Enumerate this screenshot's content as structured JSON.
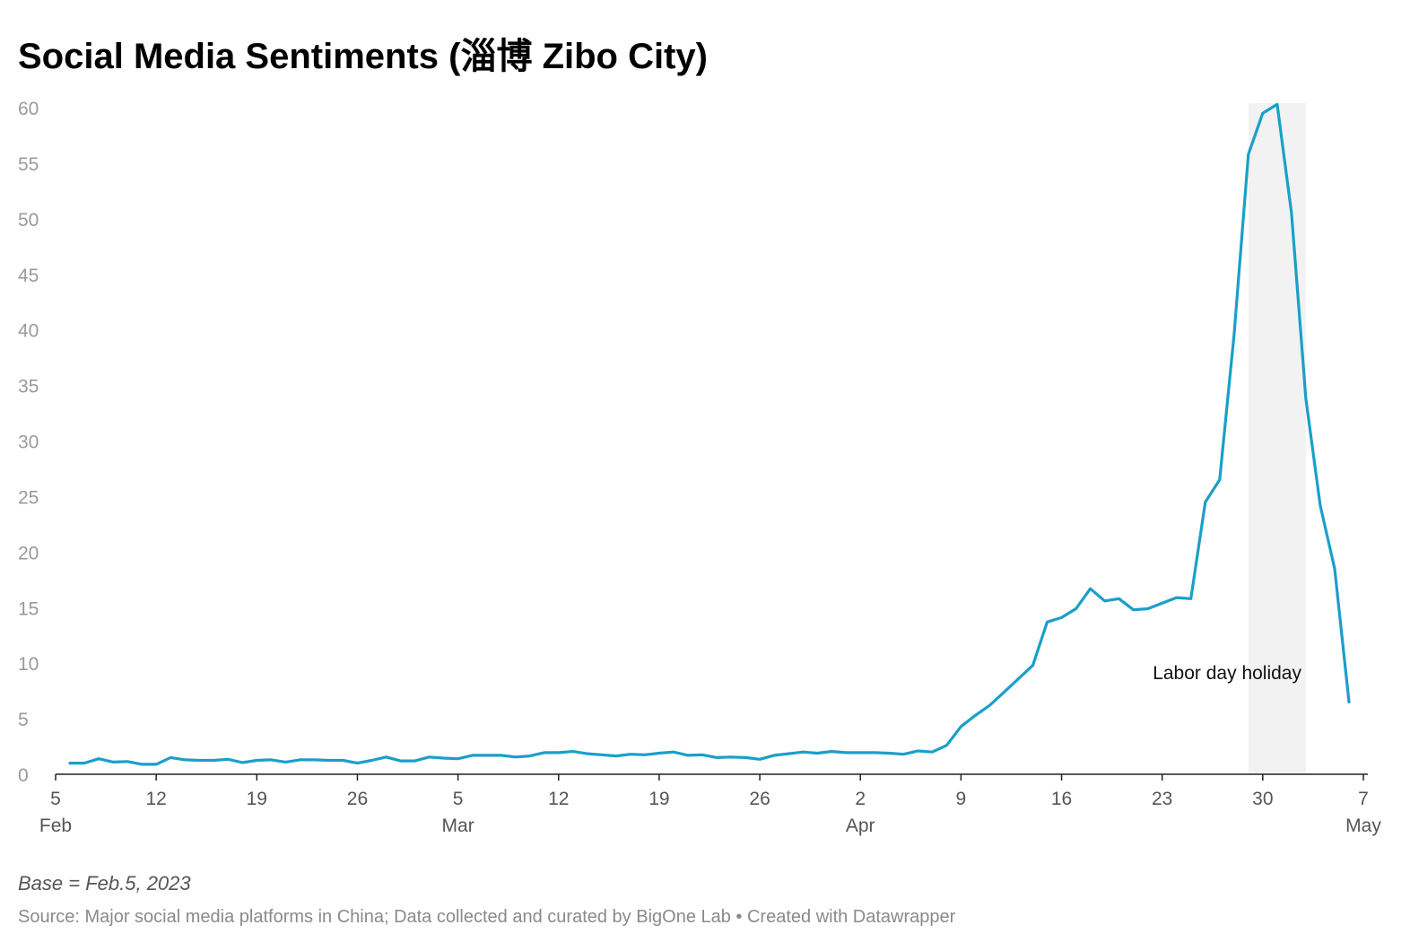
{
  "chart_data": {
    "type": "line",
    "title": "Social Media Sentiments (淄博 Zibo City)",
    "xlabel": "",
    "ylabel": "",
    "ylim": [
      0,
      60
    ],
    "yticks": [
      0,
      5,
      10,
      15,
      20,
      25,
      30,
      35,
      40,
      45,
      50,
      55,
      60
    ],
    "xlim": [
      "2023-02-05",
      "2023-05-07"
    ],
    "xticks": [
      {
        "date": "2023-02-05",
        "day": "5",
        "month": "Feb"
      },
      {
        "date": "2023-02-12",
        "day": "12",
        "month": ""
      },
      {
        "date": "2023-02-19",
        "day": "19",
        "month": ""
      },
      {
        "date": "2023-02-26",
        "day": "26",
        "month": ""
      },
      {
        "date": "2023-03-05",
        "day": "5",
        "month": "Mar"
      },
      {
        "date": "2023-03-12",
        "day": "12",
        "month": ""
      },
      {
        "date": "2023-03-19",
        "day": "19",
        "month": ""
      },
      {
        "date": "2023-03-26",
        "day": "26",
        "month": ""
      },
      {
        "date": "2023-04-02",
        "day": "2",
        "month": "Apr"
      },
      {
        "date": "2023-04-09",
        "day": "9",
        "month": ""
      },
      {
        "date": "2023-04-16",
        "day": "16",
        "month": ""
      },
      {
        "date": "2023-04-23",
        "day": "23",
        "month": ""
      },
      {
        "date": "2023-04-30",
        "day": "30",
        "month": ""
      },
      {
        "date": "2023-05-07",
        "day": "7",
        "month": "May"
      }
    ],
    "grid": false,
    "line_color": "#1a9fc9",
    "highlight": {
      "label": "Labor day holiday",
      "start": "2023-04-29",
      "end": "2023-05-03",
      "color": "#f2f2f2"
    },
    "series": [
      {
        "name": "",
        "points": [
          [
            "2023-02-06",
            1.0
          ],
          [
            "2023-02-07",
            1.0
          ],
          [
            "2023-02-08",
            1.4
          ],
          [
            "2023-02-09",
            1.1
          ],
          [
            "2023-02-10",
            1.15
          ],
          [
            "2023-02-11",
            0.9
          ],
          [
            "2023-02-12",
            0.9
          ],
          [
            "2023-02-13",
            1.5
          ],
          [
            "2023-02-14",
            1.3
          ],
          [
            "2023-02-15",
            1.25
          ],
          [
            "2023-02-16",
            1.25
          ],
          [
            "2023-02-17",
            1.35
          ],
          [
            "2023-02-18",
            1.05
          ],
          [
            "2023-02-19",
            1.25
          ],
          [
            "2023-02-20",
            1.3
          ],
          [
            "2023-02-21",
            1.1
          ],
          [
            "2023-02-22",
            1.3
          ],
          [
            "2023-02-23",
            1.3
          ],
          [
            "2023-02-24",
            1.25
          ],
          [
            "2023-02-25",
            1.25
          ],
          [
            "2023-02-26",
            1.0
          ],
          [
            "2023-02-27",
            1.25
          ],
          [
            "2023-02-28",
            1.55
          ],
          [
            "2023-03-01",
            1.2
          ],
          [
            "2023-03-02",
            1.2
          ],
          [
            "2023-03-03",
            1.55
          ],
          [
            "2023-03-04",
            1.45
          ],
          [
            "2023-03-05",
            1.4
          ],
          [
            "2023-03-06",
            1.7
          ],
          [
            "2023-03-07",
            1.7
          ],
          [
            "2023-03-08",
            1.7
          ],
          [
            "2023-03-09",
            1.55
          ],
          [
            "2023-03-10",
            1.65
          ],
          [
            "2023-03-11",
            1.95
          ],
          [
            "2023-03-12",
            1.95
          ],
          [
            "2023-03-13",
            2.05
          ],
          [
            "2023-03-14",
            1.85
          ],
          [
            "2023-03-15",
            1.75
          ],
          [
            "2023-03-16",
            1.65
          ],
          [
            "2023-03-17",
            1.8
          ],
          [
            "2023-03-18",
            1.75
          ],
          [
            "2023-03-19",
            1.9
          ],
          [
            "2023-03-20",
            2.0
          ],
          [
            "2023-03-21",
            1.7
          ],
          [
            "2023-03-22",
            1.75
          ],
          [
            "2023-03-23",
            1.5
          ],
          [
            "2023-03-24",
            1.55
          ],
          [
            "2023-03-25",
            1.5
          ],
          [
            "2023-03-26",
            1.35
          ],
          [
            "2023-03-27",
            1.7
          ],
          [
            "2023-03-28",
            1.85
          ],
          [
            "2023-03-29",
            2.0
          ],
          [
            "2023-03-30",
            1.9
          ],
          [
            "2023-03-31",
            2.05
          ],
          [
            "2023-04-01",
            1.95
          ],
          [
            "2023-04-02",
            1.95
          ],
          [
            "2023-04-03",
            1.95
          ],
          [
            "2023-04-04",
            1.9
          ],
          [
            "2023-04-05",
            1.8
          ],
          [
            "2023-04-06",
            2.1
          ],
          [
            "2023-04-07",
            2.0
          ],
          [
            "2023-04-08",
            2.6
          ],
          [
            "2023-04-09",
            4.3
          ],
          [
            "2023-04-10",
            5.3
          ],
          [
            "2023-04-11",
            6.2
          ],
          [
            "2023-04-12",
            7.4
          ],
          [
            "2023-04-13",
            8.6
          ],
          [
            "2023-04-14",
            9.8
          ],
          [
            "2023-04-15",
            13.7
          ],
          [
            "2023-04-16",
            14.1
          ],
          [
            "2023-04-17",
            14.9
          ],
          [
            "2023-04-18",
            16.7
          ],
          [
            "2023-04-19",
            15.6
          ],
          [
            "2023-04-20",
            15.8
          ],
          [
            "2023-04-21",
            14.8
          ],
          [
            "2023-04-22",
            14.9
          ],
          [
            "2023-04-23",
            15.4
          ],
          [
            "2023-04-24",
            15.9
          ],
          [
            "2023-04-25",
            15.8
          ],
          [
            "2023-04-26",
            24.5
          ],
          [
            "2023-04-27",
            26.5
          ],
          [
            "2023-04-28",
            39.5
          ],
          [
            "2023-04-29",
            55.8
          ],
          [
            "2023-04-30",
            59.5
          ],
          [
            "2023-05-01",
            60.3
          ],
          [
            "2023-05-02",
            50.5
          ],
          [
            "2023-05-03",
            33.8
          ],
          [
            "2023-05-04",
            24.2
          ],
          [
            "2023-05-05",
            18.5
          ],
          [
            "2023-05-06",
            6.5
          ]
        ]
      }
    ]
  },
  "footer": {
    "note": "Base = Feb.5, 2023",
    "source": "Source: Major social media platforms in China; Data collected and curated by BigOne Lab • Created with Datawrapper"
  }
}
